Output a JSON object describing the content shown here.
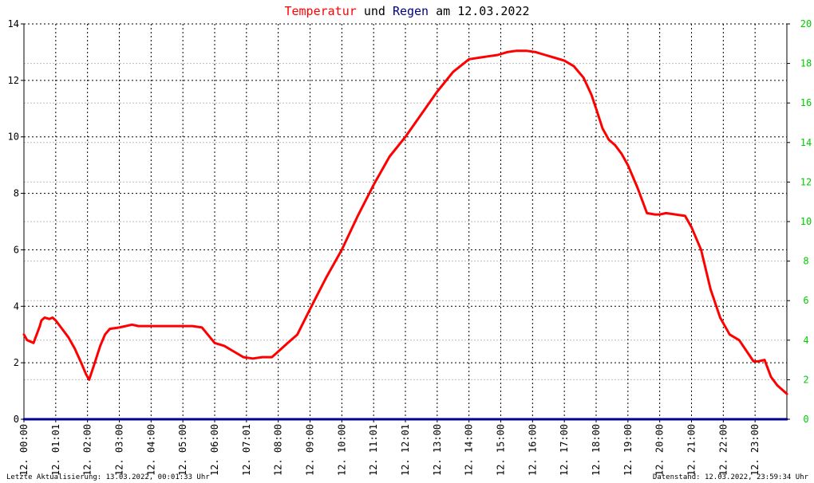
{
  "title": {
    "part1": "Temperatur",
    "part2": "und",
    "part3": "Regen",
    "part4": "am",
    "part5": "12.03.2022"
  },
  "footer": {
    "left": "Letzte Aktualisierung: 13.03.2022, 00:01:33 Uhr",
    "right": "Datenstand: 12.03.2022, 23:59:34 Uhr"
  },
  "colors": {
    "temperature": "#ff0000",
    "rain": "#00008b",
    "rain_axis": "#00cc00",
    "title_temp": "#ff0000",
    "title_rain": "#000080",
    "grid": "#000000",
    "minor_grid": "#bbbbbb",
    "axis": "#000000"
  },
  "chart_data": {
    "type": "line",
    "x_tick_labels": [
      "12. 00:00",
      "12. 01:01",
      "12. 02:00",
      "12. 03:00",
      "12. 04:00",
      "12. 05:00",
      "12. 06:00",
      "12. 07:01",
      "12. 08:00",
      "12. 09:00",
      "12. 10:00",
      "12. 11:01",
      "12. 12:01",
      "12. 13:00",
      "12. 14:00",
      "12. 15:00",
      "12. 16:00",
      "12. 17:00",
      "12. 18:00",
      "12. 19:00",
      "12. 20:00",
      "12. 21:00",
      "12. 22:00",
      "12. 23:00"
    ],
    "y_left": {
      "min": 0,
      "max": 14,
      "ticks": [
        "0",
        "2",
        "4",
        "6",
        "8",
        "10",
        "12",
        "14"
      ]
    },
    "y_right": {
      "min": 0,
      "max": 20,
      "ticks": [
        "0",
        "2",
        "4",
        "6",
        "8",
        "10",
        "12",
        "14",
        "16",
        "18",
        "20"
      ]
    },
    "grid": true,
    "series": [
      {
        "name": "Temperatur",
        "axis": "left",
        "x": [
          0,
          0.1,
          0.3,
          0.5,
          0.55,
          0.65,
          0.8,
          0.9,
          1.0,
          1.2,
          1.4,
          1.6,
          1.8,
          1.95,
          2.05,
          2.2,
          2.4,
          2.55,
          2.7,
          3.0,
          3.2,
          3.4,
          3.6,
          4.0,
          4.5,
          5.0,
          5.3,
          5.6,
          6.0,
          6.3,
          6.6,
          6.9,
          7.2,
          7.5,
          7.8,
          8.0,
          8.3,
          8.6,
          9.0,
          9.5,
          10.0,
          10.5,
          11.0,
          11.5,
          12.0,
          12.5,
          13.0,
          13.5,
          14.0,
          14.3,
          14.6,
          14.9,
          15.2,
          15.5,
          15.8,
          16.1,
          16.4,
          16.7,
          17.0,
          17.3,
          17.6,
          17.85,
          18.0,
          18.2,
          18.4,
          18.6,
          18.8,
          19.0,
          19.3,
          19.6,
          19.85,
          20.0,
          20.2,
          20.5,
          20.8,
          21.0,
          21.3,
          21.6,
          21.9,
          22.2,
          22.5,
          22.8,
          22.95,
          23.1,
          23.3,
          23.5,
          23.7,
          24.0
        ],
        "values": [
          3.0,
          2.8,
          2.7,
          3.3,
          3.5,
          3.6,
          3.55,
          3.6,
          3.5,
          3.2,
          2.9,
          2.5,
          2.0,
          1.6,
          1.4,
          1.9,
          2.6,
          3.0,
          3.2,
          3.25,
          3.3,
          3.35,
          3.3,
          3.3,
          3.3,
          3.3,
          3.3,
          3.25,
          2.7,
          2.6,
          2.4,
          2.2,
          2.15,
          2.2,
          2.2,
          2.4,
          2.7,
          3.0,
          3.9,
          5.0,
          6.0,
          7.2,
          8.3,
          9.3,
          10.0,
          10.8,
          11.6,
          12.3,
          12.75,
          12.8,
          12.85,
          12.9,
          13.0,
          13.05,
          13.05,
          13.0,
          12.9,
          12.8,
          12.7,
          12.5,
          12.1,
          11.5,
          11.0,
          10.3,
          9.9,
          9.7,
          9.4,
          9.0,
          8.2,
          7.3,
          7.25,
          7.25,
          7.3,
          7.25,
          7.2,
          6.8,
          6.0,
          4.6,
          3.6,
          3.0,
          2.8,
          2.3,
          2.05,
          2.05,
          2.1,
          1.5,
          1.2,
          0.9
        ]
      },
      {
        "name": "Regen",
        "axis": "right",
        "x": [
          0,
          24
        ],
        "values": [
          0,
          0
        ]
      }
    ]
  }
}
